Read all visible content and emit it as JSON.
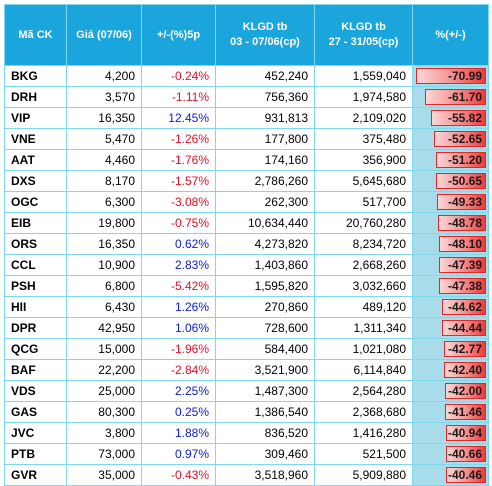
{
  "headers": {
    "code": "Mã CK",
    "price": "Giá (07/06)",
    "change": "+/-(%)5p",
    "vol1_line1": "KLGD tb",
    "vol1_line2": "03 - 07/06(cp)",
    "vol2_line1": "KLGD tb",
    "vol2_line2": "27 - 31/05(cp)",
    "pct": "%(+/-)"
  },
  "colors": {
    "header_bg": "#1aa6dc",
    "negative": "#e0102a",
    "positive": "#1020d0",
    "bar": "#ef3a3a",
    "pct_cell_bg": "#a9dcea"
  },
  "rows": [
    {
      "code": "BKG",
      "price": "4,200",
      "change": "-0.24%",
      "vol1": "452,240",
      "vol2": "1,559,040",
      "pct": "-70.99",
      "pct_value": -70.99
    },
    {
      "code": "DRH",
      "price": "3,570",
      "change": "-1.11%",
      "vol1": "756,360",
      "vol2": "1,974,580",
      "pct": "-61.70",
      "pct_value": -61.7
    },
    {
      "code": "VIP",
      "price": "16,350",
      "change": "12.45%",
      "vol1": "931,813",
      "vol2": "2,109,020",
      "pct": "-55.82",
      "pct_value": -55.82
    },
    {
      "code": "VNE",
      "price": "5,470",
      "change": "-1.26%",
      "vol1": "177,800",
      "vol2": "375,480",
      "pct": "-52.65",
      "pct_value": -52.65
    },
    {
      "code": "AAT",
      "price": "4,460",
      "change": "-1.76%",
      "vol1": "174,160",
      "vol2": "356,900",
      "pct": "-51.20",
      "pct_value": -51.2
    },
    {
      "code": "DXS",
      "price": "8,170",
      "change": "-1.57%",
      "vol1": "2,786,260",
      "vol2": "5,645,680",
      "pct": "-50.65",
      "pct_value": -50.65
    },
    {
      "code": "OGC",
      "price": "6,300",
      "change": "-3.08%",
      "vol1": "262,300",
      "vol2": "517,700",
      "pct": "-49.33",
      "pct_value": -49.33
    },
    {
      "code": "EIB",
      "price": "19,800",
      "change": "-0.75%",
      "vol1": "10,634,440",
      "vol2": "20,760,280",
      "pct": "-48.78",
      "pct_value": -48.78
    },
    {
      "code": "ORS",
      "price": "16,350",
      "change": "0.62%",
      "vol1": "4,273,820",
      "vol2": "8,234,720",
      "pct": "-48.10",
      "pct_value": -48.1
    },
    {
      "code": "CCL",
      "price": "10,900",
      "change": "2.83%",
      "vol1": "1,403,860",
      "vol2": "2,668,260",
      "pct": "-47.39",
      "pct_value": -47.39
    },
    {
      "code": "PSH",
      "price": "6,800",
      "change": "-5.42%",
      "vol1": "1,595,820",
      "vol2": "3,032,660",
      "pct": "-47.38",
      "pct_value": -47.38
    },
    {
      "code": "HII",
      "price": "6,430",
      "change": "1.26%",
      "vol1": "270,860",
      "vol2": "489,120",
      "pct": "-44.62",
      "pct_value": -44.62
    },
    {
      "code": "DPR",
      "price": "42,950",
      "change": "1.06%",
      "vol1": "728,600",
      "vol2": "1,311,340",
      "pct": "-44.44",
      "pct_value": -44.44
    },
    {
      "code": "QCG",
      "price": "15,000",
      "change": "-1.96%",
      "vol1": "584,400",
      "vol2": "1,021,080",
      "pct": "-42.77",
      "pct_value": -42.77
    },
    {
      "code": "BAF",
      "price": "22,200",
      "change": "-2.84%",
      "vol1": "3,521,900",
      "vol2": "6,114,840",
      "pct": "-42.40",
      "pct_value": -42.4
    },
    {
      "code": "VDS",
      "price": "25,000",
      "change": "2.25%",
      "vol1": "1,487,300",
      "vol2": "2,564,280",
      "pct": "-42.00",
      "pct_value": -42.0
    },
    {
      "code": "GAS",
      "price": "80,300",
      "change": "0.25%",
      "vol1": "1,386,540",
      "vol2": "2,368,680",
      "pct": "-41.46",
      "pct_value": -41.46
    },
    {
      "code": "JVC",
      "price": "3,800",
      "change": "1.88%",
      "vol1": "836,520",
      "vol2": "1,416,280",
      "pct": "-40.94",
      "pct_value": -40.94
    },
    {
      "code": "PTB",
      "price": "73,000",
      "change": "0.97%",
      "vol1": "309,460",
      "vol2": "521,500",
      "pct": "-40.66",
      "pct_value": -40.66
    },
    {
      "code": "GVR",
      "price": "35,000",
      "change": "-0.43%",
      "vol1": "3,518,960",
      "vol2": "5,909,880",
      "pct": "-40.46",
      "pct_value": -40.46
    }
  ]
}
